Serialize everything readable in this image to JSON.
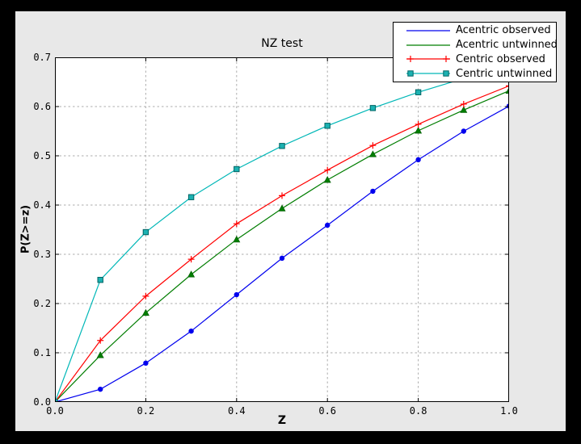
{
  "colors": {
    "page_background": "#000000",
    "figure_background": "#e8e8e8",
    "axes_background": "#ffffff",
    "grid": "#adadad",
    "text": "#000000",
    "legend_background": "#ffffff",
    "legend_border": "#000000"
  },
  "chart_data": {
    "type": "line",
    "title": "NZ test",
    "xlabel": "Z",
    "ylabel": "P(Z>=z)",
    "xlim": [
      0.0,
      1.0
    ],
    "ylim": [
      0.0,
      0.7
    ],
    "grid": true,
    "legend_position": "upper right",
    "x_tick_labels": [
      "0.0",
      "0.2",
      "0.4",
      "0.6",
      "0.8",
      "1.0"
    ],
    "x_tick_values": [
      0.0,
      0.2,
      0.4,
      0.6,
      0.8,
      1.0
    ],
    "y_tick_labels": [
      "0.0",
      "0.1",
      "0.2",
      "0.3",
      "0.4",
      "0.5",
      "0.6",
      "0.7"
    ],
    "y_tick_values": [
      0.0,
      0.1,
      0.2,
      0.3,
      0.4,
      0.5,
      0.6,
      0.7
    ],
    "x": [
      0.0,
      0.1,
      0.2,
      0.3,
      0.4,
      0.5,
      0.6,
      0.7,
      0.8,
      0.9,
      1.0
    ],
    "series": [
      {
        "name": "Acentric observed",
        "color": "#0000ee",
        "marker": "circle",
        "marker_fill": "#0000ee",
        "marker_edge": "#0000ee",
        "legend_shows_marker": false,
        "values": [
          0.0,
          0.026,
          0.079,
          0.144,
          0.218,
          0.292,
          0.359,
          0.428,
          0.492,
          0.55,
          0.601
        ]
      },
      {
        "name": "Acentric untwinned",
        "color": "#007d00",
        "marker": "triangle-up",
        "marker_fill": "#007d00",
        "marker_edge": "#005a00",
        "legend_shows_marker": false,
        "values": [
          0.0,
          0.095,
          0.181,
          0.259,
          0.33,
          0.393,
          0.451,
          0.503,
          0.551,
          0.593,
          0.632
        ]
      },
      {
        "name": "Centric observed",
        "color": "#ff0000",
        "marker": "plus",
        "marker_fill": "#ff0000",
        "marker_edge": "#ff0000",
        "legend_shows_marker": true,
        "values": [
          0.0,
          0.125,
          0.215,
          0.29,
          0.362,
          0.419,
          0.471,
          0.521,
          0.564,
          0.605,
          0.642
        ]
      },
      {
        "name": "Centric untwinned",
        "color": "#00b7b7",
        "marker": "square",
        "marker_fill": "#1cb2b2",
        "marker_edge": "#006363",
        "legend_shows_marker": true,
        "values": [
          0.0,
          0.248,
          0.345,
          0.416,
          0.473,
          0.52,
          0.561,
          0.597,
          0.629,
          0.657,
          0.683
        ]
      }
    ]
  }
}
